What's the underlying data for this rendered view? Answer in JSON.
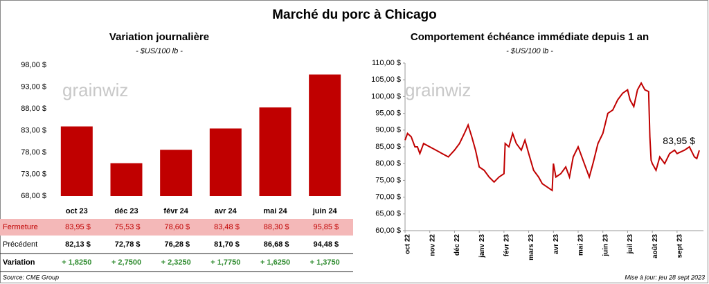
{
  "title": "Marché du porc à Chicago",
  "watermark": "grainwiz",
  "source": "Source: CME Group",
  "updated": "Mise à jour: jeu 28 sept 2023",
  "table": {
    "row_labels": [
      "Fermeture",
      "Précédent",
      "Variation"
    ],
    "previous": [
      "82,13 $",
      "72,78 $",
      "76,28 $",
      "81,70 $",
      "86,68 $",
      "94,48 $"
    ],
    "variation": [
      "+ 1,8250",
      "+ 2,7500",
      "+ 2,3250",
      "+ 1,7750",
      "+ 1,6250",
      "+ 1,3750"
    ]
  },
  "chart_data": [
    {
      "type": "bar",
      "title": "Variation journalière",
      "subtitle": "- $US/100 lb -",
      "categories": [
        "oct 23",
        "déc 23",
        "févr 24",
        "avr 24",
        "mai 24",
        "juin 24"
      ],
      "values": [
        83.95,
        75.53,
        78.6,
        83.48,
        88.3,
        95.85
      ],
      "value_labels": [
        "83,95 $",
        "75,53 $",
        "78,60 $",
        "83,48 $",
        "88,30 $",
        "95,85 $"
      ],
      "color": "#c00000",
      "ylim": [
        68,
        98
      ],
      "yticks": [
        {
          "value": 68,
          "label": "68,00 $"
        },
        {
          "value": 73,
          "label": "73,00 $"
        },
        {
          "value": 78,
          "label": "78,00 $"
        },
        {
          "value": 83,
          "label": "83,00 $"
        },
        {
          "value": 88,
          "label": "88,00 $"
        },
        {
          "value": 93,
          "label": "93,00 $"
        },
        {
          "value": 98,
          "label": "98,00 $"
        }
      ]
    },
    {
      "type": "line",
      "title": "Comportement  échéance immédiate depuis 1 an",
      "subtitle": "- $US/100 lb -",
      "color": "#c00000",
      "annotation": "83,95 $",
      "x": [
        0,
        0.1,
        0.25,
        0.4,
        0.5,
        0.6,
        0.75,
        1.0,
        1.25,
        1.5,
        1.75,
        2.0,
        2.2,
        2.4,
        2.55,
        2.7,
        2.85,
        3.0,
        3.2,
        3.4,
        3.6,
        3.8,
        4.0,
        4.05,
        4.2,
        4.35,
        4.5,
        4.7,
        4.85,
        5.0,
        5.2,
        5.4,
        5.55,
        5.75,
        5.95,
        6.0,
        6.1,
        6.3,
        6.5,
        6.65,
        6.8,
        7.0,
        7.1,
        7.25,
        7.45,
        7.6,
        7.8,
        8.0,
        8.2,
        8.4,
        8.6,
        8.8,
        9.0,
        9.1,
        9.25,
        9.4,
        9.55,
        9.7,
        9.85,
        9.9,
        9.95,
        10.0,
        10.15,
        10.3,
        10.5,
        10.7,
        10.9,
        11.0,
        11.3,
        11.5,
        11.7,
        11.8,
        11.9
      ],
      "values": [
        87,
        89,
        88,
        85,
        85,
        83,
        86,
        85,
        84,
        83,
        82,
        84,
        86,
        89,
        91.5,
        88,
        84,
        79,
        78,
        76,
        74.5,
        76,
        77,
        86,
        85,
        89,
        86,
        84,
        87,
        83,
        78,
        76,
        74,
        73,
        72,
        80,
        76,
        77,
        79,
        76,
        82,
        85,
        83,
        80,
        76,
        80,
        86,
        89,
        95,
        96,
        99,
        101,
        102,
        99,
        97,
        102,
        104,
        102,
        101.5,
        88,
        81,
        80,
        78,
        82,
        80,
        83,
        84,
        83,
        84,
        85,
        82,
        81.5,
        83.95
      ],
      "xlim": [
        0,
        11.9
      ],
      "xticks": [
        {
          "value": 0,
          "label": "oct 22"
        },
        {
          "value": 1,
          "label": "nov 22"
        },
        {
          "value": 2,
          "label": "déc 22"
        },
        {
          "value": 3,
          "label": "janv 23"
        },
        {
          "value": 4,
          "label": "févr 23"
        },
        {
          "value": 5,
          "label": "mars 23"
        },
        {
          "value": 6,
          "label": "avr 23"
        },
        {
          "value": 7,
          "label": "mai 23"
        },
        {
          "value": 8,
          "label": "juin 23"
        },
        {
          "value": 9,
          "label": "juil 23"
        },
        {
          "value": 10,
          "label": "août 23"
        },
        {
          "value": 11,
          "label": "sept 23"
        }
      ],
      "ylim": [
        60,
        110
      ],
      "yticks": [
        {
          "value": 60,
          "label": "60,00 $"
        },
        {
          "value": 65,
          "label": "65,00 $"
        },
        {
          "value": 70,
          "label": "70,00 $"
        },
        {
          "value": 75,
          "label": "75,00 $"
        },
        {
          "value": 80,
          "label": "80,00 $"
        },
        {
          "value": 85,
          "label": "85,00 $"
        },
        {
          "value": 90,
          "label": "90,00 $"
        },
        {
          "value": 95,
          "label": "95,00 $"
        },
        {
          "value": 100,
          "label": "100,00 $"
        },
        {
          "value": 105,
          "label": "105,00 $"
        },
        {
          "value": 110,
          "label": "110,00 $"
        }
      ]
    }
  ]
}
